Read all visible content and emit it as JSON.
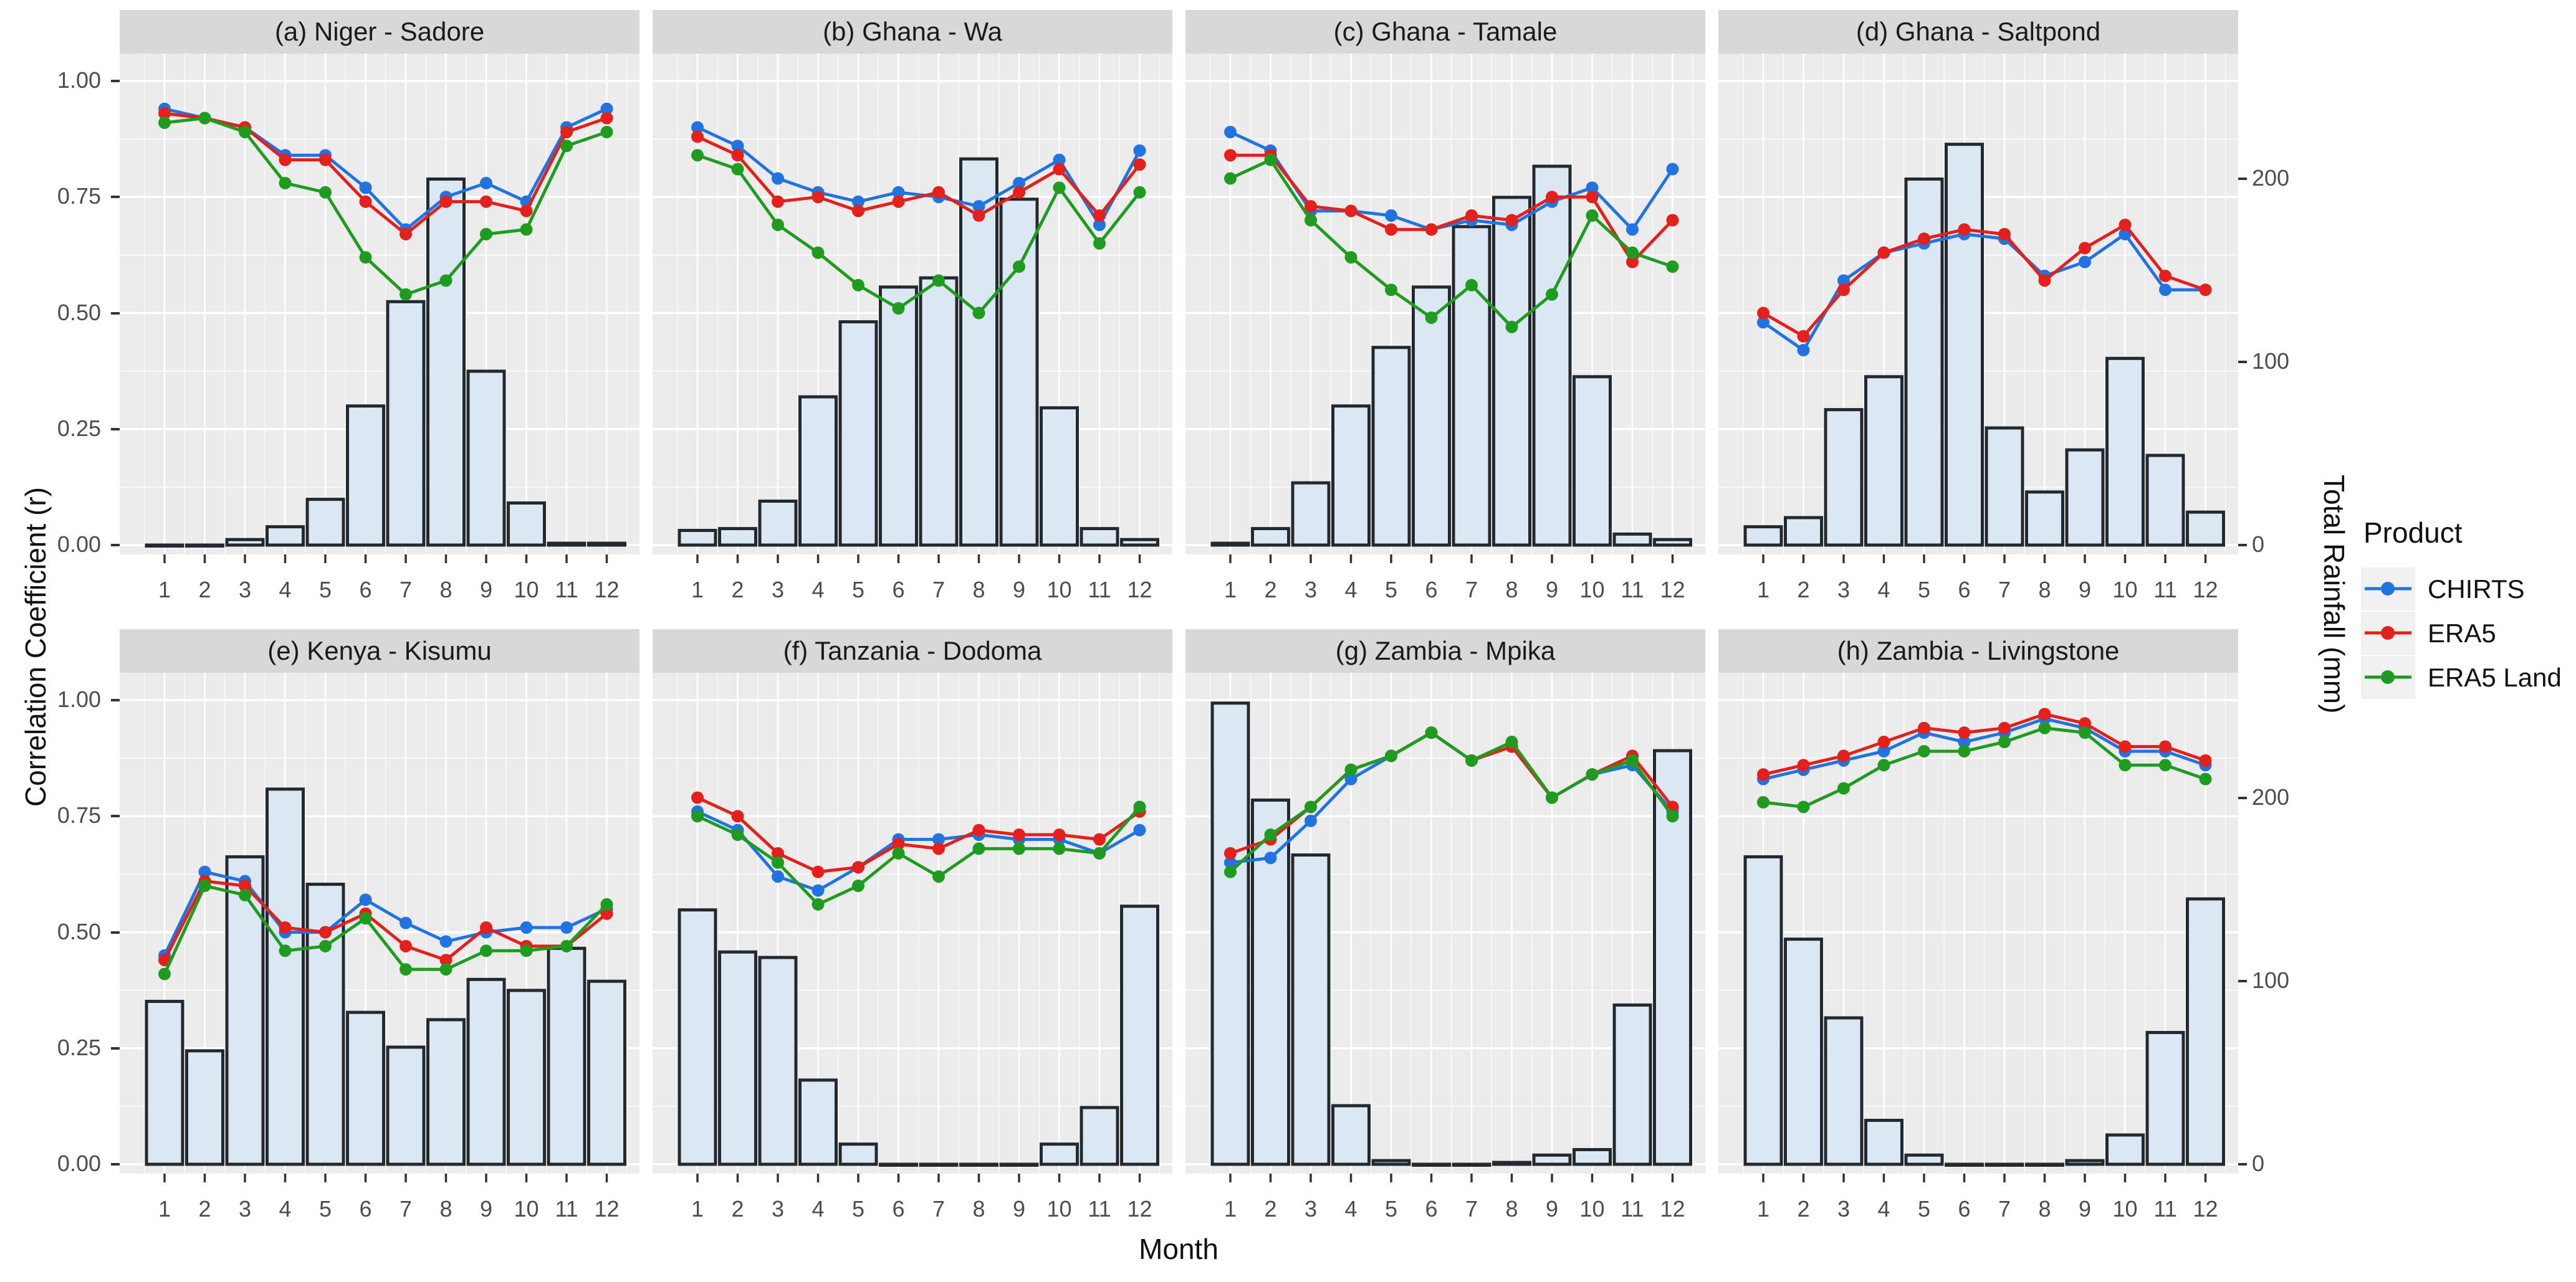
{
  "figure": {
    "background": "#ffffff",
    "panel_bg": "#ebebeb",
    "strip_bg": "#d8d8d8",
    "grid_color": "#ffffff",
    "bar_fill": "#dce7f4",
    "bar_stroke": "#23292f",
    "tick_color": "#4d4d4d"
  },
  "axes": {
    "left_title": "Correlation Coefficient (r)",
    "right_title": "Total Rainfall (mm)",
    "x_title": "Month",
    "left_ticks": [
      "0.00",
      "0.25",
      "0.50",
      "0.75",
      "1.00"
    ],
    "left_tick_values": [
      0,
      0.25,
      0.5,
      0.75,
      1.0
    ],
    "right_ticks": [
      "0",
      "100",
      "200"
    ],
    "right_tick_values_mm": [
      0,
      100,
      200
    ],
    "month_labels": [
      "1",
      "2",
      "3",
      "4",
      "5",
      "6",
      "7",
      "8",
      "9",
      "10",
      "11",
      "12"
    ],
    "mm_per_r_unit": 253.6
  },
  "legend": {
    "title": "Product",
    "entries": [
      {
        "label": "CHIRTS",
        "color": "#2073e0"
      },
      {
        "label": "ERA5",
        "color": "#e3201b"
      },
      {
        "label": "ERA5 Land",
        "color": "#1f9c1f"
      }
    ]
  },
  "chart_data": {
    "type": "line+bar faceted (2 rows x 4 cols), lines = correlation coefficient r (left axis), bars = total rainfall mm (right axis)",
    "x": [
      1,
      2,
      3,
      4,
      5,
      6,
      7,
      8,
      9,
      10,
      11,
      12
    ],
    "series_names": [
      "CHIRTS",
      "ERA5",
      "ERA5 Land"
    ],
    "left_axis_range": [
      0,
      1
    ],
    "right_axis_range_mm": [
      0,
      260
    ],
    "panels": [
      {
        "id": "a",
        "title": "(a) Niger - Sadore",
        "row": 0,
        "col": 0,
        "chirts": [
          0.94,
          0.92,
          0.9,
          0.84,
          0.84,
          0.77,
          0.68,
          0.75,
          0.78,
          0.74,
          0.9,
          0.94
        ],
        "era5": [
          0.93,
          0.92,
          0.9,
          0.83,
          0.83,
          0.74,
          0.67,
          0.74,
          0.74,
          0.72,
          0.89,
          0.92
        ],
        "era5_land": [
          0.91,
          0.92,
          0.89,
          0.78,
          0.76,
          0.62,
          0.54,
          0.57,
          0.67,
          0.68,
          0.86,
          0.89
        ],
        "rainfall_mm": [
          0,
          0,
          3,
          10,
          25,
          76,
          133,
          200,
          95,
          23,
          1,
          1
        ]
      },
      {
        "id": "b",
        "title": "(b) Ghana - Wa",
        "row": 0,
        "col": 1,
        "chirts": [
          0.9,
          0.86,
          0.79,
          0.76,
          0.74,
          0.76,
          0.75,
          0.73,
          0.78,
          0.83,
          0.69,
          0.85
        ],
        "era5": [
          0.88,
          0.84,
          0.74,
          0.75,
          0.72,
          0.74,
          0.76,
          0.71,
          0.76,
          0.81,
          0.71,
          0.82
        ],
        "era5_land": [
          0.84,
          0.81,
          0.69,
          0.63,
          0.56,
          0.51,
          0.57,
          0.5,
          0.6,
          0.77,
          0.65,
          0.76
        ],
        "rainfall_mm": [
          8,
          9,
          24,
          81,
          122,
          141,
          146,
          211,
          189,
          75,
          9,
          3
        ]
      },
      {
        "id": "c",
        "title": "(c) Ghana - Tamale",
        "row": 0,
        "col": 2,
        "chirts": [
          0.89,
          0.85,
          0.72,
          0.72,
          0.71,
          0.68,
          0.7,
          0.69,
          0.74,
          0.77,
          0.68,
          0.81
        ],
        "era5": [
          0.84,
          0.84,
          0.73,
          0.72,
          0.68,
          0.68,
          0.71,
          0.7,
          0.75,
          0.75,
          0.61,
          0.7
        ],
        "era5_land": [
          0.79,
          0.83,
          0.7,
          0.62,
          0.55,
          0.49,
          0.56,
          0.47,
          0.54,
          0.71,
          0.63,
          0.6
        ],
        "rainfall_mm": [
          1,
          9,
          34,
          76,
          108,
          141,
          174,
          190,
          207,
          92,
          6,
          3
        ]
      },
      {
        "id": "d",
        "title": "(d) Ghana - Saltpond",
        "row": 0,
        "col": 3,
        "chirts": [
          0.48,
          0.42,
          0.57,
          0.63,
          0.65,
          0.67,
          0.66,
          0.58,
          0.61,
          0.67,
          0.55,
          0.55
        ],
        "era5": [
          0.5,
          0.45,
          0.55,
          0.63,
          0.66,
          0.68,
          0.67,
          0.57,
          0.64,
          0.69,
          0.58,
          0.55
        ],
        "era5_land": null,
        "rainfall_mm": [
          10,
          15,
          74,
          92,
          200,
          219,
          64,
          29,
          52,
          102,
          49,
          18
        ]
      },
      {
        "id": "e",
        "title": "(e) Kenya - Kisumu",
        "row": 1,
        "col": 0,
        "chirts": [
          0.45,
          0.63,
          0.61,
          0.5,
          0.5,
          0.57,
          0.52,
          0.48,
          0.5,
          0.51,
          0.51,
          0.55
        ],
        "era5": [
          0.44,
          0.61,
          0.6,
          0.51,
          0.5,
          0.54,
          0.47,
          0.44,
          0.51,
          0.47,
          0.47,
          0.54
        ],
        "era5_land": [
          0.41,
          0.6,
          0.58,
          0.46,
          0.47,
          0.53,
          0.42,
          0.42,
          0.46,
          0.46,
          0.47,
          0.56
        ],
        "rainfall_mm": [
          89,
          62,
          168,
          205,
          153,
          83,
          64,
          79,
          101,
          95,
          118,
          100
        ]
      },
      {
        "id": "f",
        "title": "(f) Tanzania - Dodoma",
        "row": 1,
        "col": 1,
        "chirts": [
          0.76,
          0.72,
          0.62,
          0.59,
          0.64,
          0.7,
          0.7,
          0.71,
          0.7,
          0.7,
          0.67,
          0.72
        ],
        "era5": [
          0.79,
          0.75,
          0.67,
          0.63,
          0.64,
          0.69,
          0.68,
          0.72,
          0.71,
          0.71,
          0.7,
          0.76
        ],
        "era5_land": [
          0.75,
          0.71,
          0.65,
          0.56,
          0.6,
          0.67,
          0.62,
          0.68,
          0.68,
          0.68,
          0.67,
          0.77
        ],
        "rainfall_mm": [
          139,
          116,
          113,
          46,
          11,
          0,
          0,
          0,
          0,
          11,
          31,
          141
        ]
      },
      {
        "id": "g",
        "title": "(g) Zambia - Mpika",
        "row": 1,
        "col": 2,
        "chirts": [
          0.65,
          0.66,
          0.74,
          0.83,
          0.88,
          0.93,
          0.87,
          0.9,
          0.79,
          0.84,
          0.86,
          0.76
        ],
        "era5": [
          0.67,
          0.7,
          0.77,
          0.85,
          0.88,
          0.93,
          0.87,
          0.9,
          0.79,
          0.84,
          0.88,
          0.77
        ],
        "era5_land": [
          0.63,
          0.71,
          0.77,
          0.85,
          0.88,
          0.93,
          0.87,
          0.91,
          0.79,
          0.84,
          0.87,
          0.75
        ],
        "rainfall_mm": [
          252,
          199,
          169,
          32,
          2,
          0,
          0,
          1,
          5,
          8,
          87,
          226
        ]
      },
      {
        "id": "h",
        "title": "(h) Zambia - Livingstone",
        "row": 1,
        "col": 3,
        "chirts": [
          0.83,
          0.85,
          0.87,
          0.89,
          0.93,
          0.91,
          0.93,
          0.96,
          0.94,
          0.89,
          0.89,
          0.86
        ],
        "era5": [
          0.84,
          0.86,
          0.88,
          0.91,
          0.94,
          0.93,
          0.94,
          0.97,
          0.95,
          0.9,
          0.9,
          0.87
        ],
        "era5_land": [
          0.78,
          0.77,
          0.81,
          0.86,
          0.89,
          0.89,
          0.91,
          0.94,
          0.93,
          0.86,
          0.86,
          0.83
        ],
        "rainfall_mm": [
          168,
          123,
          80,
          24,
          5,
          0,
          0,
          0,
          2,
          16,
          72,
          145
        ]
      }
    ]
  }
}
